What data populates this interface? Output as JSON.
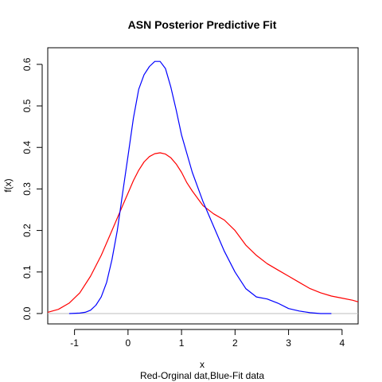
{
  "chart_data": {
    "type": "line",
    "title": "ASN Posterior Predictive Fit",
    "xlabel": "x",
    "ylabel": "f(x)",
    "caption": "Red-Orginal dat,Blue-Fit data",
    "xlim": [
      -1.5,
      4.3
    ],
    "ylim": [
      -0.025,
      0.64
    ],
    "x_ticks": [
      -1,
      0,
      1,
      2,
      3,
      4
    ],
    "y_ticks": [
      0.0,
      0.1,
      0.2,
      0.3,
      0.4,
      0.5,
      0.6
    ],
    "x_tick_labels": [
      "-1",
      "0",
      "1",
      "2",
      "3",
      "4"
    ],
    "y_tick_labels": [
      "0.0",
      "0.1",
      "0.2",
      "0.3",
      "0.4",
      "0.5",
      "0.6"
    ],
    "reference_line_y": 0,
    "grid": false,
    "series": [
      {
        "color": "#ff0000",
        "x": [
          -1.5,
          -1.3,
          -1.1,
          -0.9,
          -0.7,
          -0.5,
          -0.3,
          -0.1,
          0.0,
          0.1,
          0.2,
          0.3,
          0.4,
          0.5,
          0.6,
          0.7,
          0.8,
          0.9,
          1.0,
          1.1,
          1.2,
          1.4,
          1.6,
          1.8,
          2.0,
          2.2,
          2.4,
          2.6,
          2.8,
          3.0,
          3.2,
          3.4,
          3.6,
          3.8,
          4.0,
          4.2,
          4.3
        ],
        "y": [
          0.003,
          0.01,
          0.025,
          0.05,
          0.09,
          0.14,
          0.2,
          0.26,
          0.29,
          0.32,
          0.345,
          0.365,
          0.378,
          0.385,
          0.387,
          0.384,
          0.375,
          0.36,
          0.34,
          0.315,
          0.295,
          0.26,
          0.24,
          0.225,
          0.2,
          0.165,
          0.14,
          0.12,
          0.105,
          0.09,
          0.075,
          0.06,
          0.05,
          0.042,
          0.037,
          0.032,
          0.028
        ]
      },
      {
        "color": "#0000ff",
        "x": [
          -1.1,
          -0.9,
          -0.8,
          -0.7,
          -0.6,
          -0.5,
          -0.4,
          -0.3,
          -0.2,
          -0.1,
          0.0,
          0.1,
          0.2,
          0.3,
          0.4,
          0.5,
          0.6,
          0.7,
          0.8,
          0.9,
          1.0,
          1.2,
          1.4,
          1.6,
          1.8,
          2.0,
          2.2,
          2.4,
          2.6,
          2.8,
          3.0,
          3.2,
          3.4,
          3.6,
          3.8
        ],
        "y": [
          0.0,
          0.001,
          0.003,
          0.008,
          0.02,
          0.04,
          0.075,
          0.13,
          0.2,
          0.29,
          0.38,
          0.47,
          0.54,
          0.575,
          0.595,
          0.607,
          0.607,
          0.59,
          0.545,
          0.49,
          0.43,
          0.34,
          0.27,
          0.21,
          0.15,
          0.1,
          0.06,
          0.04,
          0.035,
          0.025,
          0.012,
          0.006,
          0.002,
          0.0,
          0.0
        ]
      }
    ]
  }
}
